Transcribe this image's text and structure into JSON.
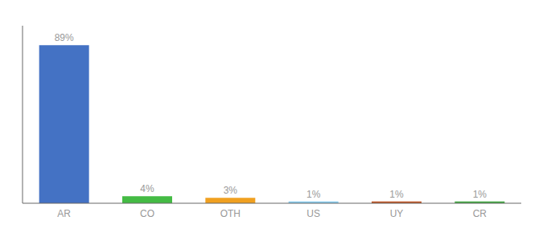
{
  "chart_data": {
    "type": "bar",
    "categories": [
      "AR",
      "CO",
      "OTH",
      "US",
      "UY",
      "CR"
    ],
    "values": [
      89,
      4,
      3,
      1,
      1,
      1
    ],
    "value_labels": [
      "89%",
      "4%",
      "3%",
      "1%",
      "1%",
      "1%"
    ],
    "data_labels": true,
    "colors": [
      "#4472c4",
      "#44bb44",
      "#f0a020",
      "#88ccee",
      "#c05828",
      "#44aa44"
    ],
    "ylim": [
      0,
      100
    ],
    "tick_labels": "x"
  }
}
